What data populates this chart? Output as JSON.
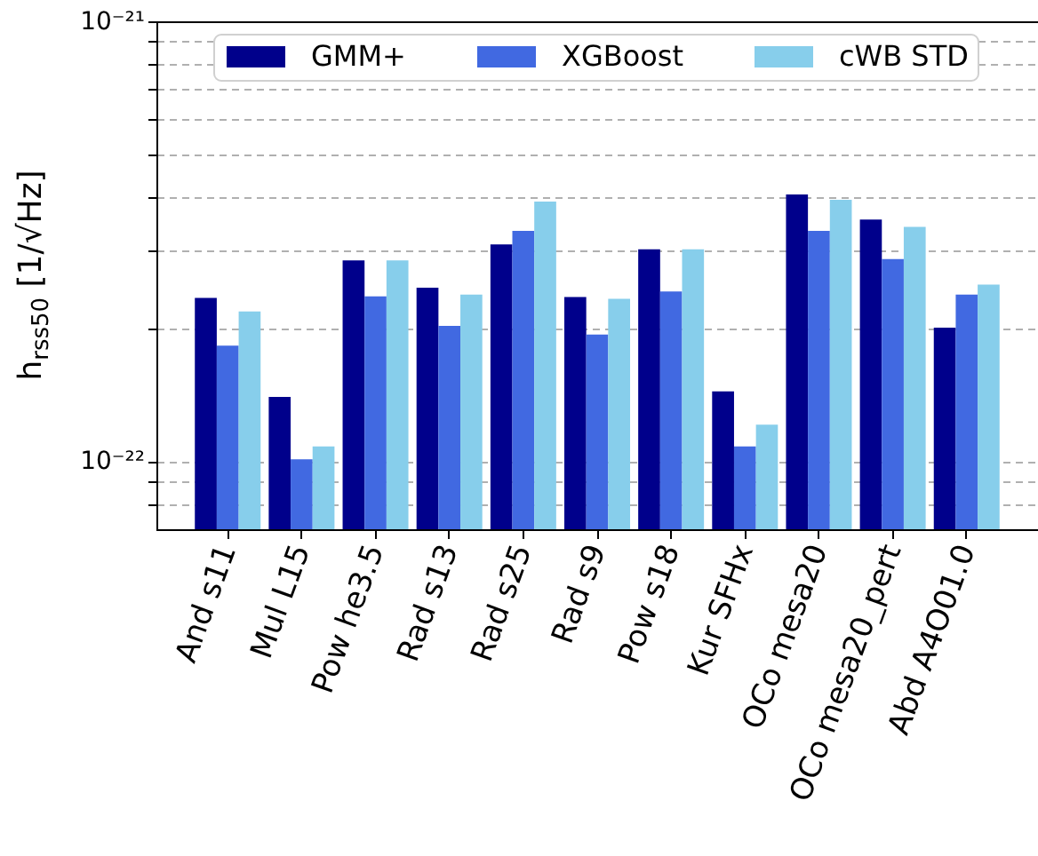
{
  "chart_data": {
    "type": "bar",
    "ylabel": "h$_{rss50}$ [1/√Hz]",
    "categories": [
      "And s11",
      "Mul L15",
      "Pow he3.5",
      "Rad s13",
      "Rad s25",
      "Rad s9",
      "Pow s18",
      "Kur SFHx",
      "OCo mesa20",
      "OCo mesa20_pert",
      "Abd A4O01.0"
    ],
    "series": [
      {
        "name": "GMM+",
        "color": "#00008b",
        "values": [
          2.35e-22,
          1.4e-22,
          2.86e-22,
          2.48e-22,
          3.11e-22,
          2.36e-22,
          3.03e-22,
          1.44e-22,
          4.04e-22,
          3.54e-22,
          2.01e-22
        ]
      },
      {
        "name": "XGBoost",
        "color": "#4169e1",
        "values": [
          1.83e-22,
          1.01e-22,
          2.37e-22,
          2.03e-22,
          3.34e-22,
          1.94e-22,
          2.43e-22,
          1.08e-22,
          3.34e-22,
          2.88e-22,
          2.39e-22
        ]
      },
      {
        "name": "cWB STD",
        "color": "#87ceeb",
        "values": [
          2.19e-22,
          1.08e-22,
          2.86e-22,
          2.39e-22,
          3.89e-22,
          2.34e-22,
          3.03e-22,
          1.21e-22,
          3.93e-22,
          3.41e-22,
          2.52e-22
        ]
      }
    ],
    "log": "y",
    "ylim": [
      7e-23,
      1e-21
    ],
    "yticks": [
      {
        "value": 8e-23,
        "label": null
      },
      {
        "value": 9e-23,
        "label": null
      },
      {
        "value": 1e-22,
        "label": "10⁻²²"
      },
      {
        "value": 2e-22,
        "label": null
      },
      {
        "value": 3e-22,
        "label": null
      },
      {
        "value": 4e-22,
        "label": null
      },
      {
        "value": 5e-22,
        "label": null
      },
      {
        "value": 6e-22,
        "label": null
      },
      {
        "value": 7e-22,
        "label": null
      },
      {
        "value": 8e-22,
        "label": null
      },
      {
        "value": 9e-22,
        "label": null
      },
      {
        "value": 1e-21,
        "label": "10⁻²¹"
      }
    ],
    "grid": "y",
    "legend": "top"
  }
}
